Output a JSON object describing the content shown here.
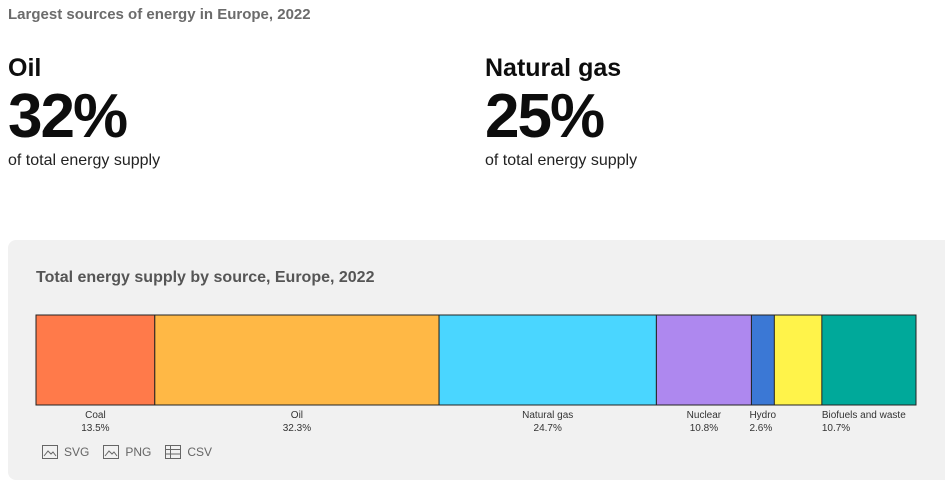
{
  "page_title": "Largest sources of energy in Europe, 2022",
  "stats": [
    {
      "label": "Oil",
      "value": "32%",
      "sub": "of total energy supply"
    },
    {
      "label": "Natural gas",
      "value": "25%",
      "sub": "of total energy supply"
    }
  ],
  "chart_data": {
    "type": "bar",
    "subtype": "stacked-100-percent",
    "title": "Total energy supply by source, Europe, 2022",
    "categories": [
      "Coal",
      "Oil",
      "Natural gas",
      "Nuclear",
      "Hydro",
      "Biofuels and waste"
    ],
    "values": [
      13.5,
      32.3,
      24.7,
      10.8,
      2.6,
      10.7
    ],
    "value_labels": [
      "13.5%",
      "32.3%",
      "24.7%",
      "10.8%",
      "2.6%",
      "10.7%"
    ],
    "colors": [
      "#ff7a4a",
      "#ffb845",
      "#4ad6ff",
      "#ae88ef",
      "#3b78d5",
      "#fff34a",
      "#00a99a"
    ],
    "remainder_color": "#fff34a"
  },
  "toolbar": {
    "svg_label": "SVG",
    "png_label": "PNG",
    "csv_label": "CSV",
    "svg_icon": "image-icon",
    "png_icon": "image-icon",
    "csv_icon": "table-icon"
  }
}
